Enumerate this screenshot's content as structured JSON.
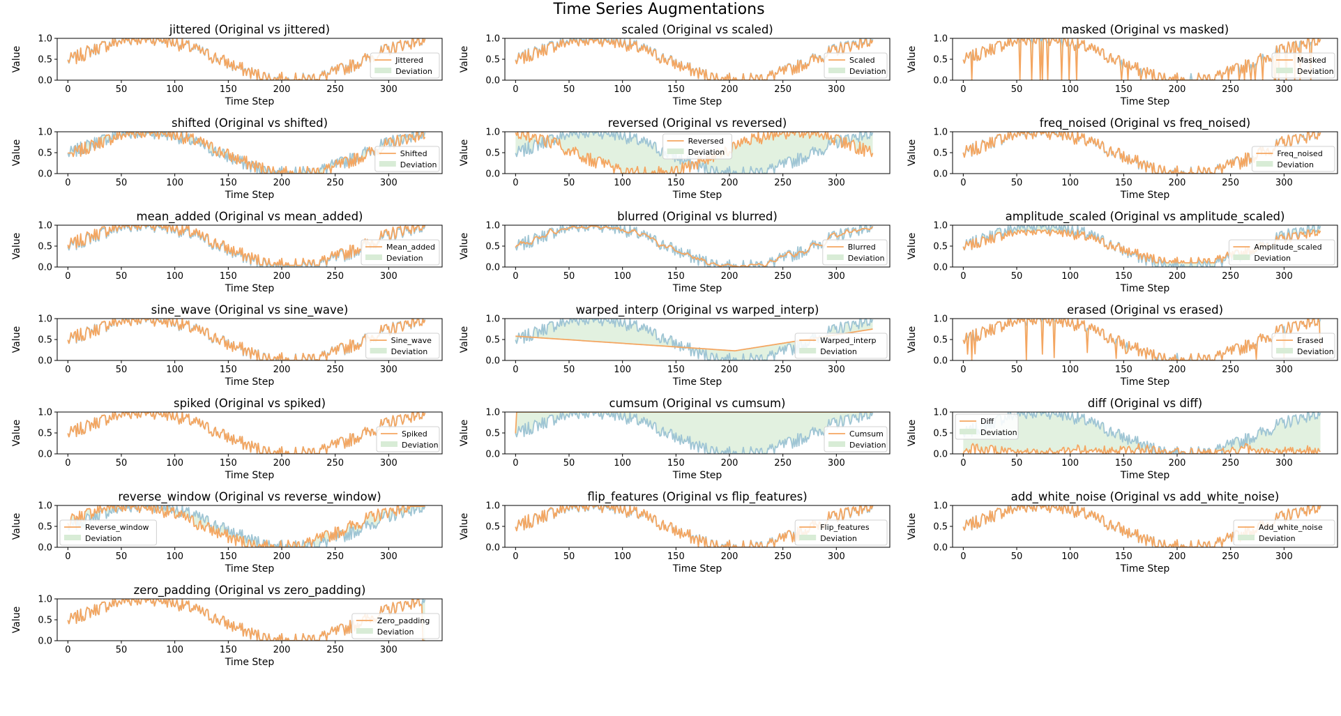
{
  "title": "Time Series Augmentations",
  "colors": {
    "original": "#9fc5d4",
    "augmented": "#f4a661",
    "deviation_fill": "#d8ecd6",
    "axes": "#000000"
  },
  "chart_data": {
    "type": "line",
    "grid": false,
    "axes_common": {
      "xlabel": "Time Step",
      "ylabel": "Value",
      "xlim": [
        -10,
        350
      ],
      "ylim": [
        0,
        1
      ],
      "xticks": [
        0,
        50,
        100,
        150,
        200,
        250,
        300
      ],
      "yticks": [
        0.0,
        0.5,
        1.0
      ],
      "ytick_labels": [
        "0.0",
        "0.5",
        "1.0"
      ],
      "n_points": 335,
      "deviation_label": "Deviation"
    },
    "original_signal": {
      "description_kind": "noisy sine",
      "x_range": [
        0,
        334
      ],
      "y_range": [
        0,
        1
      ]
    },
    "subplots": [
      {
        "id": "jittered",
        "title": "jittered (Original vs jittered)",
        "aug_label": "Jittered",
        "legend": "lower right"
      },
      {
        "id": "scaled",
        "title": "scaled (Original vs scaled)",
        "aug_label": "Scaled",
        "legend": "lower right"
      },
      {
        "id": "masked",
        "title": "masked (Original vs masked)",
        "aug_label": "Masked",
        "legend": "lower right"
      },
      {
        "id": "shifted",
        "title": "shifted (Original vs shifted)",
        "aug_label": "Shifted",
        "legend": "lower right"
      },
      {
        "id": "reversed",
        "title": "reversed (Original vs reversed)",
        "aug_label": "Reversed",
        "legend": "upper center"
      },
      {
        "id": "freq_noised",
        "title": "freq_noised (Original vs freq_noised)",
        "aug_label": "Freq_noised",
        "legend": "lower right"
      },
      {
        "id": "mean_added",
        "title": "mean_added (Original vs mean_added)",
        "aug_label": "Mean_added",
        "legend": "lower right"
      },
      {
        "id": "blurred",
        "title": "blurred (Original vs blurred)",
        "aug_label": "Blurred",
        "legend": "lower right"
      },
      {
        "id": "amplitude_scaled",
        "title": "amplitude_scaled (Original vs amplitude_scaled)",
        "aug_label": "Amplitude_scaled",
        "legend": "lower right"
      },
      {
        "id": "sine_wave",
        "title": "sine_wave (Original vs sine_wave)",
        "aug_label": "Sine_wave",
        "legend": "lower right"
      },
      {
        "id": "warped_interp",
        "title": "warped_interp (Original vs warped_interp)",
        "aug_label": "Warped_interp",
        "legend": "lower right"
      },
      {
        "id": "erased",
        "title": "erased (Original vs erased)",
        "aug_label": "Erased",
        "legend": "lower right"
      },
      {
        "id": "spiked",
        "title": "spiked (Original vs spiked)",
        "aug_label": "Spiked",
        "legend": "lower right"
      },
      {
        "id": "cumsum",
        "title": "cumsum (Original vs cumsum)",
        "aug_label": "Cumsum",
        "legend": "lower right"
      },
      {
        "id": "diff",
        "title": "diff (Original vs diff)",
        "aug_label": "Diff",
        "legend": "upper left"
      },
      {
        "id": "reverse_window",
        "title": "reverse_window (Original vs reverse_window)",
        "aug_label": "Reverse_window",
        "legend": "lower left"
      },
      {
        "id": "flip_features",
        "title": "flip_features (Original vs flip_features)",
        "aug_label": "Flip_features",
        "legend": "lower right"
      },
      {
        "id": "add_white_noise",
        "title": "add_white_noise (Original vs add_white_noise)",
        "aug_label": "Add_white_noise",
        "legend": "lower right"
      },
      {
        "id": "zero_padding",
        "title": "zero_padding (Original vs zero_padding)",
        "aug_label": "Zero_padding",
        "legend": "lower right"
      }
    ]
  }
}
